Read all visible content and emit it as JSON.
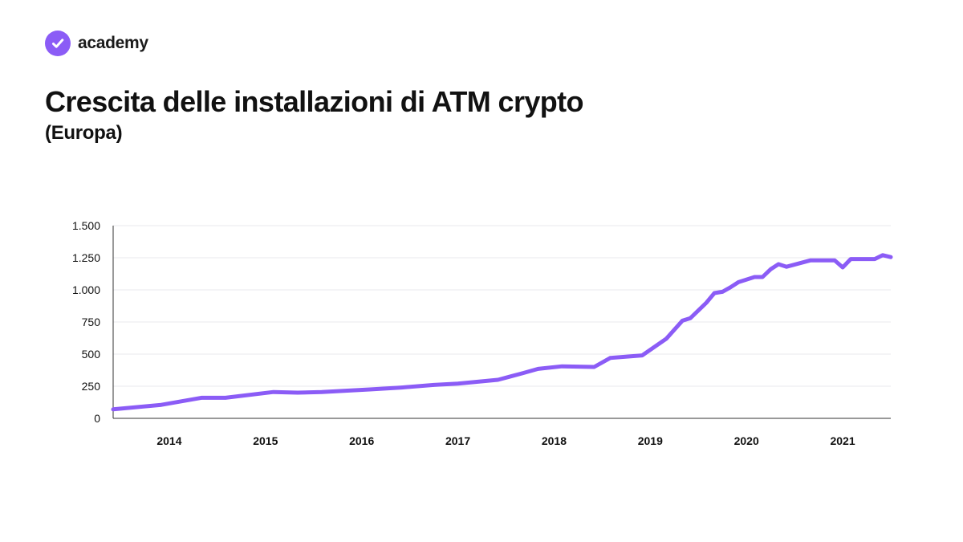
{
  "brand": {
    "name": "academy",
    "icon": "check-badge-icon",
    "color": "#8B5CF6"
  },
  "chart_data": {
    "type": "line",
    "title": "Crescita delle installazioni di ATM crypto",
    "subtitle": "(Europa)",
    "xlabel": "",
    "ylabel": "",
    "ylim": [
      0,
      1500
    ],
    "xlim": [
      "2013-06",
      "2021-07"
    ],
    "y_ticks": [
      0,
      250,
      500,
      750,
      1000,
      1250,
      1500
    ],
    "y_tick_labels": [
      "0",
      "250",
      "500",
      "750",
      "1.000",
      "1.250",
      "1.500"
    ],
    "x_ticks": [
      "2014-01",
      "2015-01",
      "2016-01",
      "2017-01",
      "2018-01",
      "2019-01",
      "2020-01",
      "2021-01"
    ],
    "x_tick_labels": [
      "2014",
      "2015",
      "2016",
      "2017",
      "2018",
      "2019",
      "2020",
      "2021"
    ],
    "grid": true,
    "legend": "none",
    "line_color": "#8B5CF6",
    "series": [
      {
        "x": [
          "2013-06",
          "2013-12",
          "2014-05",
          "2014-08",
          "2015-02",
          "2015-05",
          "2015-08",
          "2016-02",
          "2016-06",
          "2016-10",
          "2017-01",
          "2017-06",
          "2017-09",
          "2017-11",
          "2018-02",
          "2018-06",
          "2018-08",
          "2018-12",
          "2019-03",
          "2019-05",
          "2019-06",
          "2019-08",
          "2019-09",
          "2019-10",
          "2019-11",
          "2019-12",
          "2020-02",
          "2020-03",
          "2020-04",
          "2020-05",
          "2020-06",
          "2020-09",
          "2020-12",
          "2021-01",
          "2021-02",
          "2021-05",
          "2021-06",
          "2021-07"
        ],
        "values": [
          70,
          105,
          160,
          160,
          205,
          200,
          205,
          225,
          240,
          260,
          270,
          300,
          350,
          385,
          405,
          400,
          470,
          490,
          620,
          760,
          780,
          900,
          975,
          985,
          1020,
          1060,
          1100,
          1100,
          1160,
          1200,
          1180,
          1230,
          1230,
          1175,
          1240,
          1240,
          1270,
          1255
        ]
      }
    ]
  }
}
